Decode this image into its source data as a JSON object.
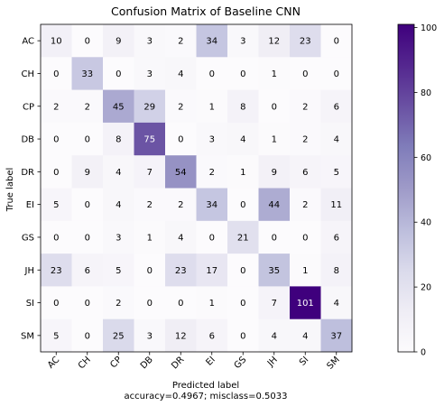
{
  "chart_data": {
    "type": "heatmap",
    "title": "Confusion Matrix of Baseline CNN",
    "xlabel": "Predicted label",
    "xlabel_sub": "accuracy=0.4967; misclass=0.5033",
    "ylabel": "True label",
    "row_labels": [
      "AC",
      "CH",
      "CP",
      "DB",
      "DR",
      "EI",
      "GS",
      "JH",
      "SI",
      "SM"
    ],
    "col_labels": [
      "AC",
      "CH",
      "CP",
      "DB",
      "DR",
      "EI",
      "GS",
      "JH",
      "SI",
      "SM"
    ],
    "matrix": [
      [
        10,
        0,
        9,
        3,
        2,
        34,
        3,
        12,
        23,
        0
      ],
      [
        0,
        33,
        0,
        3,
        4,
        0,
        0,
        1,
        0,
        0
      ],
      [
        2,
        2,
        45,
        29,
        2,
        1,
        8,
        0,
        2,
        6
      ],
      [
        0,
        0,
        8,
        75,
        0,
        3,
        4,
        1,
        2,
        4
      ],
      [
        0,
        9,
        4,
        7,
        54,
        2,
        1,
        9,
        6,
        5
      ],
      [
        5,
        0,
        4,
        2,
        2,
        34,
        0,
        44,
        2,
        11
      ],
      [
        0,
        0,
        3,
        1,
        4,
        0,
        21,
        0,
        0,
        6
      ],
      [
        23,
        6,
        5,
        0,
        23,
        17,
        0,
        35,
        1,
        8
      ],
      [
        0,
        0,
        2,
        0,
        0,
        1,
        0,
        7,
        101,
        4
      ],
      [
        5,
        0,
        25,
        3,
        12,
        6,
        0,
        4,
        4,
        37
      ]
    ],
    "colormap": "Purples",
    "color_low": "#fcfbfd",
    "color_high": "#3f007d",
    "vmin": 0,
    "vmax": 101,
    "colorbar_ticks": [
      0,
      20,
      40,
      60,
      80,
      100
    ],
    "grid": false
  }
}
